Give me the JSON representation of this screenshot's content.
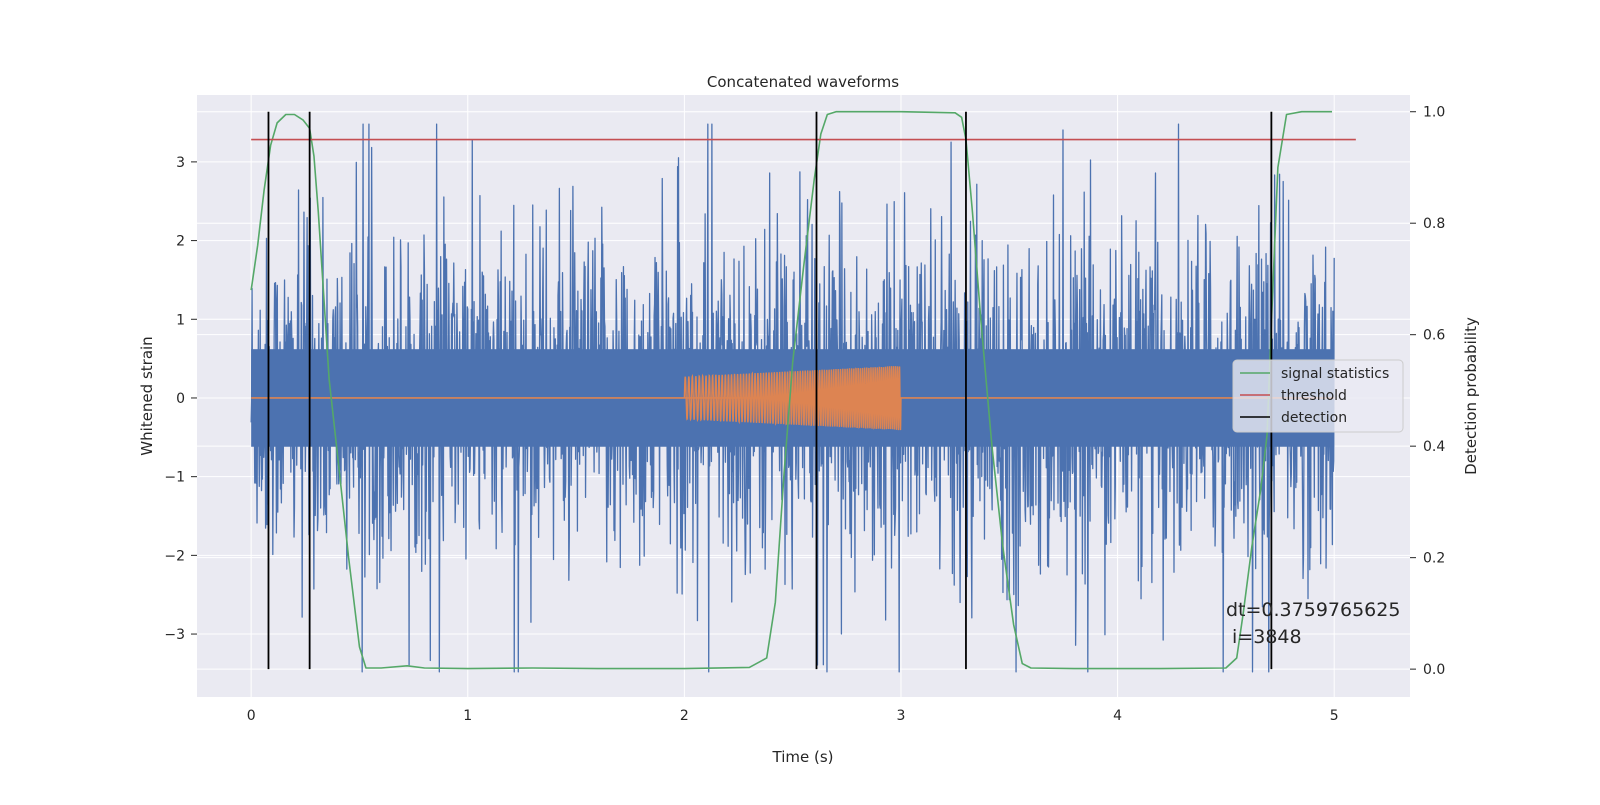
{
  "chart_data": {
    "type": "line",
    "title": "Concatenated waveforms",
    "xlabel": "Time (s)",
    "ylabel_left": "Whitened strain",
    "ylabel_right": "Detection probability",
    "xlim": [
      -0.25,
      5.35
    ],
    "ylim_left": [
      -3.8,
      3.85
    ],
    "ylim_right": [
      -0.05,
      1.03
    ],
    "xticks": [
      0,
      1,
      2,
      3,
      4,
      5
    ],
    "yticks_left": [
      -3,
      -2,
      -1,
      0,
      1,
      2,
      3
    ],
    "yticks_right": [
      0.0,
      0.2,
      0.4,
      0.6,
      0.8,
      1.0
    ],
    "grid": true,
    "legend_position": "center-right",
    "legend": [
      "signal statistics",
      "threshold",
      "detection"
    ],
    "series": [
      {
        "role": "noise",
        "axis": "left",
        "color": "#4c72b0",
        "x_range": [
          0,
          5
        ],
        "typical_amplitude": 1.0,
        "peak_max": 3.48,
        "peak_min": -3.48
      },
      {
        "role": "injected chirp",
        "axis": "left",
        "color": "#dd8452",
        "x_range": [
          2,
          3
        ],
        "amplitude_start": 0.27,
        "amplitude_end": 0.41,
        "baseline": 0
      },
      {
        "name": "signal statistics",
        "axis": "right",
        "color": "#55a868",
        "x": [
          0,
          0.03,
          0.06,
          0.09,
          0.12,
          0.16,
          0.2,
          0.24,
          0.27,
          0.29,
          0.31,
          0.33,
          0.36,
          0.4,
          0.45,
          0.5,
          0.53,
          0.6,
          0.72,
          0.8,
          1.0,
          1.3,
          1.6,
          2.0,
          2.3,
          2.38,
          2.42,
          2.46,
          2.5,
          2.55,
          2.6,
          2.63,
          2.66,
          2.7,
          3.0,
          3.25,
          3.28,
          3.3,
          3.33,
          3.37,
          3.42,
          3.47,
          3.52,
          3.56,
          3.6,
          3.8,
          4.2,
          4.5,
          4.55,
          4.58,
          4.62,
          4.66,
          4.69,
          4.71,
          4.74,
          4.78,
          4.85,
          4.99
        ],
        "y": [
          0.68,
          0.76,
          0.86,
          0.94,
          0.98,
          0.995,
          0.995,
          0.985,
          0.97,
          0.92,
          0.82,
          0.7,
          0.52,
          0.38,
          0.2,
          0.04,
          0.002,
          0.002,
          0.006,
          0.002,
          0.001,
          0.002,
          0.001,
          0.001,
          0.003,
          0.02,
          0.12,
          0.35,
          0.55,
          0.72,
          0.88,
          0.96,
          0.995,
          1.0,
          1.0,
          0.998,
          0.99,
          0.95,
          0.82,
          0.62,
          0.4,
          0.22,
          0.08,
          0.01,
          0.002,
          0.001,
          0.001,
          0.002,
          0.02,
          0.1,
          0.22,
          0.32,
          0.42,
          0.62,
          0.9,
          0.995,
          1.0,
          1.0
        ]
      },
      {
        "name": "threshold",
        "axis": "right",
        "color": "#c44e52",
        "x": [
          0,
          5.1
        ],
        "y": [
          0.95,
          0.95
        ]
      },
      {
        "name": "detection",
        "axis": "right",
        "color": "#000000",
        "type": "vlines",
        "x": [
          0.08,
          0.27,
          2.61,
          3.3,
          4.71
        ],
        "ymin": 0.0,
        "ymax": 1.0
      }
    ],
    "annotation": {
      "text": "dt=0.3759765625\n i=3848",
      "line1": "dt=0.3759765625",
      "line2": " i=3848",
      "x": 4.5,
      "y_left": -2.95
    },
    "colors": {
      "axes_bg": "#eaeaf2",
      "grid": "#ffffff",
      "text": "#262626"
    }
  }
}
